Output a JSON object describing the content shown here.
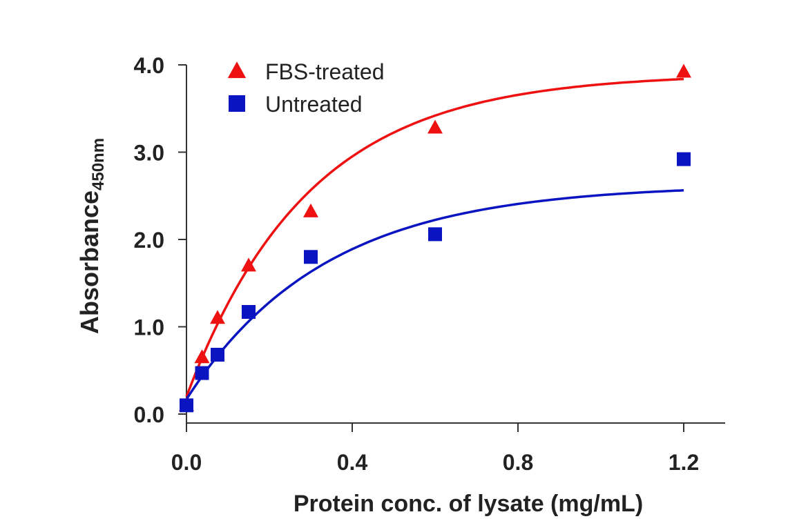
{
  "chart_data": {
    "type": "scatter",
    "title": "",
    "xlabel": "Protein conc. of lysate (mg/mL)",
    "ylabel": {
      "main": "Absorbance",
      "subscript": "450nm"
    },
    "xlim": [
      0.0,
      1.3
    ],
    "ylim": [
      0.0,
      4.0
    ],
    "x_ticks": [
      "0.0",
      "0.4",
      "0.8",
      "1.2"
    ],
    "y_ticks": [
      "0.0",
      "1.0",
      "2.0",
      "3.0",
      "4.0"
    ],
    "legend_position": "top-left",
    "series": [
      {
        "name": "FBS-treated",
        "marker": "triangle",
        "color": "#ee1111",
        "x": [
          0.0,
          0.0375,
          0.075,
          0.15,
          0.3,
          0.6,
          1.2
        ],
        "y": [
          0.1,
          0.65,
          1.1,
          1.7,
          2.32,
          3.28,
          3.92
        ],
        "fit": {
          "model": "exponential_rise",
          "a": 3.9,
          "k": 3.4,
          "c": 0.2,
          "x_range": [
            0.0,
            1.2
          ]
        }
      },
      {
        "name": "Untreated",
        "marker": "square",
        "color": "#0a14c0",
        "x": [
          0.0,
          0.0375,
          0.075,
          0.15,
          0.3,
          0.6,
          1.2
        ],
        "y": [
          0.1,
          0.47,
          0.68,
          1.17,
          1.8,
          2.06,
          2.92
        ],
        "fit": {
          "model": "exponential_rise",
          "a": 2.63,
          "k": 3.0,
          "c": 0.17,
          "x_range": [
            0.0,
            1.2
          ]
        }
      }
    ]
  }
}
